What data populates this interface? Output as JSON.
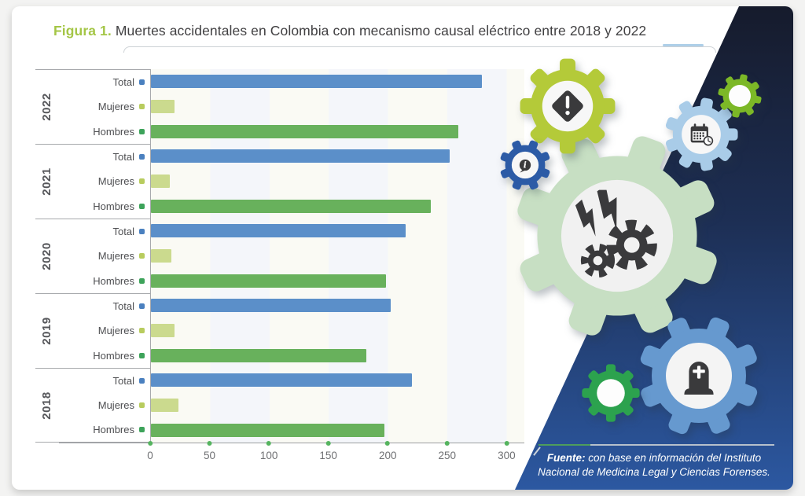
{
  "figure": {
    "label": "Figura 1.",
    "title": "Muertes accidentales en Colombia con mecanismo causal eléctrico entre 2018 y 2022"
  },
  "chart_data": {
    "type": "bar",
    "orientation": "horizontal",
    "title": "Muertes accidentales en Colombia con mecanismo causal eléctrico entre 2018 y 2022",
    "xlabel": "",
    "ylabel": "",
    "x_ticks": [
      0,
      50,
      100,
      150,
      200,
      250,
      300
    ],
    "xlim": [
      0,
      315
    ],
    "grid": "alternating vertical bands",
    "legend_position": "none",
    "row_order": [
      "Total",
      "Mujeres",
      "Hombres"
    ],
    "series_colors": {
      "Total": "#5b8fc9",
      "Mujeres": "#cbda8e",
      "Hombres": "#68b15c"
    },
    "marker_colors": {
      "Total": "#4a80bf",
      "Mujeres": "#b8cc5e",
      "Hombres": "#3da35a"
    },
    "groups": [
      {
        "year": "2022",
        "rows": [
          {
            "label": "Total",
            "value": 279
          },
          {
            "label": "Mujeres",
            "value": 20
          },
          {
            "label": "Hombres",
            "value": 259
          }
        ]
      },
      {
        "year": "2021",
        "rows": [
          {
            "label": "Total",
            "value": 252
          },
          {
            "label": "Mujeres",
            "value": 16
          },
          {
            "label": "Hombres",
            "value": 236
          }
        ]
      },
      {
        "year": "2020",
        "rows": [
          {
            "label": "Total",
            "value": 215
          },
          {
            "label": "Mujeres",
            "value": 17
          },
          {
            "label": "Hombres",
            "value": 198
          }
        ]
      },
      {
        "year": "2019",
        "rows": [
          {
            "label": "Total",
            "value": 202
          },
          {
            "label": "Mujeres",
            "value": 20
          },
          {
            "label": "Hombres",
            "value": 182
          }
        ]
      },
      {
        "year": "2018",
        "rows": [
          {
            "label": "Total",
            "value": 220
          },
          {
            "label": "Mujeres",
            "value": 23
          },
          {
            "label": "Hombres",
            "value": 197
          }
        ]
      }
    ]
  },
  "source": {
    "label": "Fuente:",
    "text": " con base en información del Instituto Nacional de Medicina Legal y Ciencias Forenses."
  },
  "palette": {
    "title_accent": "#a4c646",
    "title_text": "#414042",
    "axis_line": "#9c9ea1",
    "tick_dot": "#55b45f",
    "band_top": "#161b2c",
    "band_mid": "#1d2f55",
    "band_bottom": "#2c58a1",
    "icon_dark": "#3a3a3c"
  },
  "decor": {
    "gears": [
      {
        "id": "big",
        "name": "electric-hazard-gear",
        "color": "#c7dfc3",
        "icon": "electric",
        "teeth": 8,
        "innerR": 56,
        "innerColor": "#f1f1f1",
        "iconSize": 92,
        "rot": 20
      },
      {
        "id": "warning",
        "name": "warning-gear",
        "color": "#b4ca39",
        "icon": "warning",
        "teeth": 8,
        "innerR": 55,
        "innerColor": "#f7f7f7",
        "iconSize": 84,
        "rot": 0
      },
      {
        "id": "info",
        "name": "info-gear",
        "color": "#2c5ba6",
        "icon": "info",
        "teeth": 8,
        "innerR": 54,
        "innerColor": "#f7f7f7",
        "iconSize": 78,
        "rot": 22
      },
      {
        "id": "calendar",
        "name": "calendar-clock-gear",
        "color": "#a9cce8",
        "icon": "calendar",
        "teeth": 9,
        "innerR": 55,
        "innerColor": "#f7f7f7",
        "iconSize": 82,
        "rot": 10
      },
      {
        "id": "topright",
        "name": "small-green-gear-top",
        "color": "#7cb827",
        "ring": true,
        "teeth": 8,
        "innerR": 52,
        "innerColor": "#fdfdfd",
        "rot": 12
      },
      {
        "id": "tombstone",
        "name": "death-gear",
        "color": "#6699cf",
        "icon": "tombstone",
        "teeth": 8,
        "innerR": 56,
        "innerColor": "#f4f4f4",
        "iconSize": 80,
        "rot": 22
      },
      {
        "id": "bottomgreen",
        "name": "small-green-gear-bottom",
        "color": "#2ca24e",
        "ring": true,
        "teeth": 8,
        "innerR": 50,
        "innerColor": "#fdfdfd",
        "rot": 0
      }
    ]
  }
}
